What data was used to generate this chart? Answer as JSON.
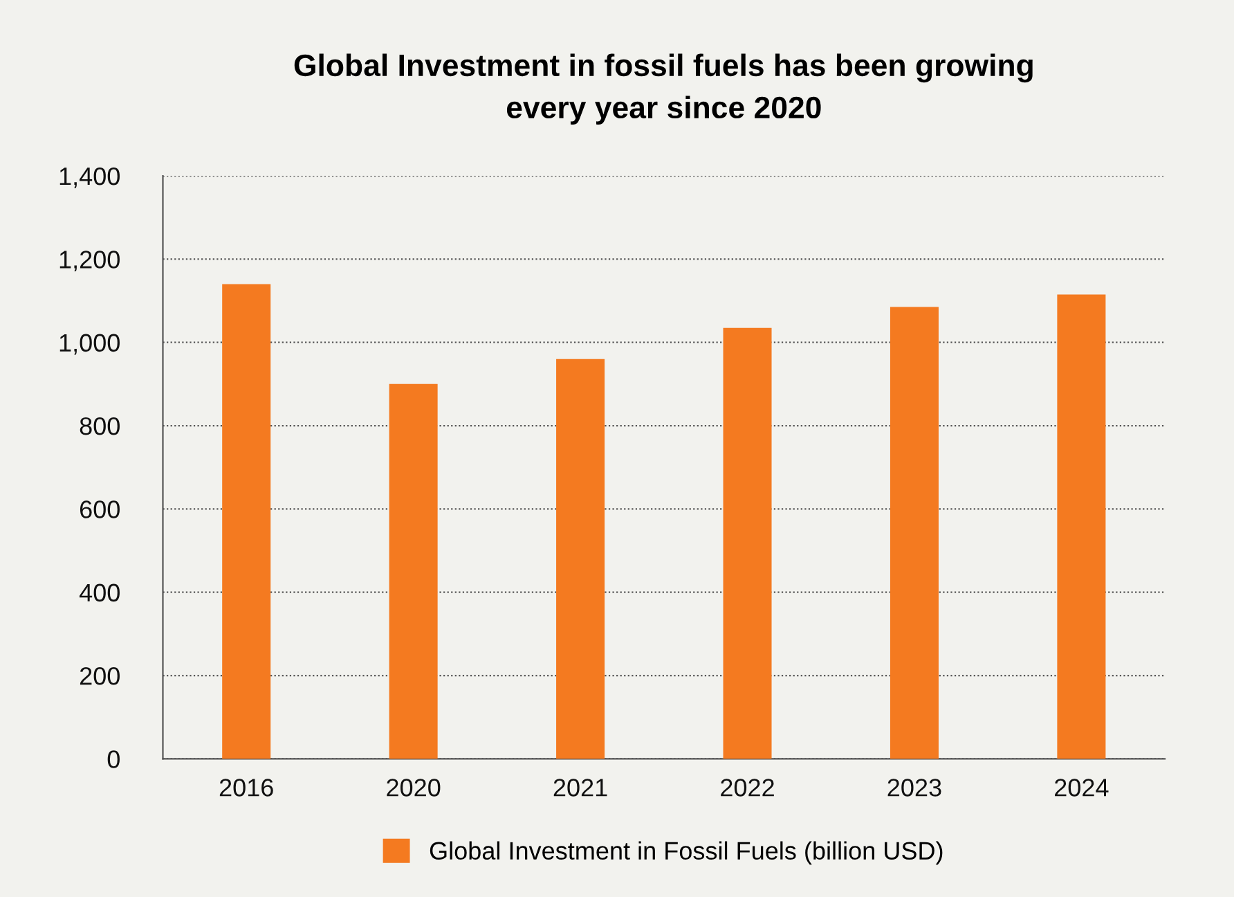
{
  "chart_data": {
    "type": "bar",
    "title": "Global Investment in fossil fuels has been growing\nevery year since 2020",
    "categories": [
      "2016",
      "2020",
      "2021",
      "2022",
      "2023",
      "2024"
    ],
    "series": [
      {
        "name": "Global Investment in Fossil Fuels (billion USD)",
        "color": "#f47a20",
        "values": [
          1140,
          900,
          960,
          1035,
          1085,
          1115
        ]
      }
    ],
    "ylim": [
      0,
      1400
    ],
    "yticks": [
      {
        "value": 0,
        "label": "0"
      },
      {
        "value": 200,
        "label": "200"
      },
      {
        "value": 400,
        "label": "400"
      },
      {
        "value": 600,
        "label": "600"
      },
      {
        "value": 800,
        "label": "800"
      },
      {
        "value": 1000,
        "label": "1,000"
      },
      {
        "value": 1200,
        "label": "1,200"
      },
      {
        "value": 1400,
        "label": "1,400"
      }
    ],
    "grid": "y",
    "legend": "bottom"
  }
}
